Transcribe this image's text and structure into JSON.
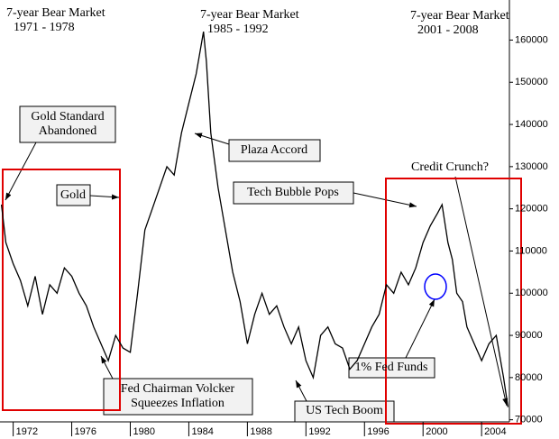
{
  "chart_data": {
    "type": "line",
    "series": [
      {
        "color": "#000000",
        "x": [
          1971.2,
          1971.5,
          1972,
          1972.5,
          1973,
          1973.5,
          1974,
          1974.5,
          1975,
          1975.5,
          1976,
          1976.5,
          1977,
          1977.5,
          1978,
          1978.5,
          1979,
          1979.5,
          1980,
          1980.5,
          1981,
          1981.5,
          1982,
          1982.5,
          1983,
          1983.5,
          1984,
          1984.5,
          1985,
          1985.2,
          1985.5,
          1986,
          1986.5,
          1987,
          1987.5,
          1988,
          1988.5,
          1989,
          1989.5,
          1990,
          1990.5,
          1991,
          1991.5,
          1992,
          1992.5,
          1993,
          1993.5,
          1994,
          1994.5,
          1995,
          1995.5,
          1996,
          1996.5,
          1997,
          1997.5,
          1998,
          1998.5,
          1999,
          1999.5,
          2000,
          2000.5,
          2001,
          2001.3,
          2001.7,
          2002,
          2002.3,
          2002.7,
          2003,
          2003.5,
          2004,
          2004.5,
          2005,
          2005.5,
          2005.8
        ],
        "values": [
          121000,
          112000,
          107000,
          103000,
          97000,
          104000,
          95000,
          102000,
          100000,
          106000,
          104000,
          100000,
          97000,
          92000,
          88000,
          84000,
          90000,
          87000,
          86000,
          100000,
          115000,
          120000,
          125000,
          130000,
          128000,
          138000,
          145000,
          152000,
          162000,
          155000,
          138000,
          125000,
          115000,
          105000,
          98000,
          88000,
          95000,
          100000,
          95000,
          97000,
          92000,
          88000,
          92000,
          84000,
          80000,
          90000,
          92000,
          88000,
          87000,
          82000,
          84000,
          88000,
          92000,
          95000,
          102000,
          100000,
          105000,
          102000,
          106000,
          112000,
          116000,
          119000,
          121000,
          112000,
          108000,
          100000,
          98000,
          92000,
          88000,
          84000,
          88000,
          90000,
          80000,
          73000
        ]
      }
    ],
    "xlim": [
      1971.1,
      2005.9
    ],
    "xticks": [
      1972,
      1976,
      1980,
      1984,
      1988,
      1992,
      1996,
      2000,
      2004
    ],
    "ylim": [
      69500,
      169500
    ],
    "yticks": [
      70000,
      80000,
      90000,
      100000,
      110000,
      120000,
      130000,
      140000,
      150000,
      160000
    ],
    "annotations": [
      [
        "7-year Bear Market",
        "1971 - 1978"
      ],
      [
        "7-year Bear Market",
        "1985 - 1992"
      ],
      [
        "7-year Bear Market",
        "2001 - 2008"
      ],
      [
        "Gold Standard",
        "Abandoned"
      ],
      [
        "Gold"
      ],
      [
        "Plaza Accord"
      ],
      [
        "Tech Bubble Pops"
      ],
      [
        "Credit Crunch?"
      ],
      [
        "1% Fed Funds"
      ],
      [
        "Fed Chairman Volcker",
        "Squeezes Inflation"
      ],
      [
        "US Tech Boom"
      ]
    ]
  }
}
